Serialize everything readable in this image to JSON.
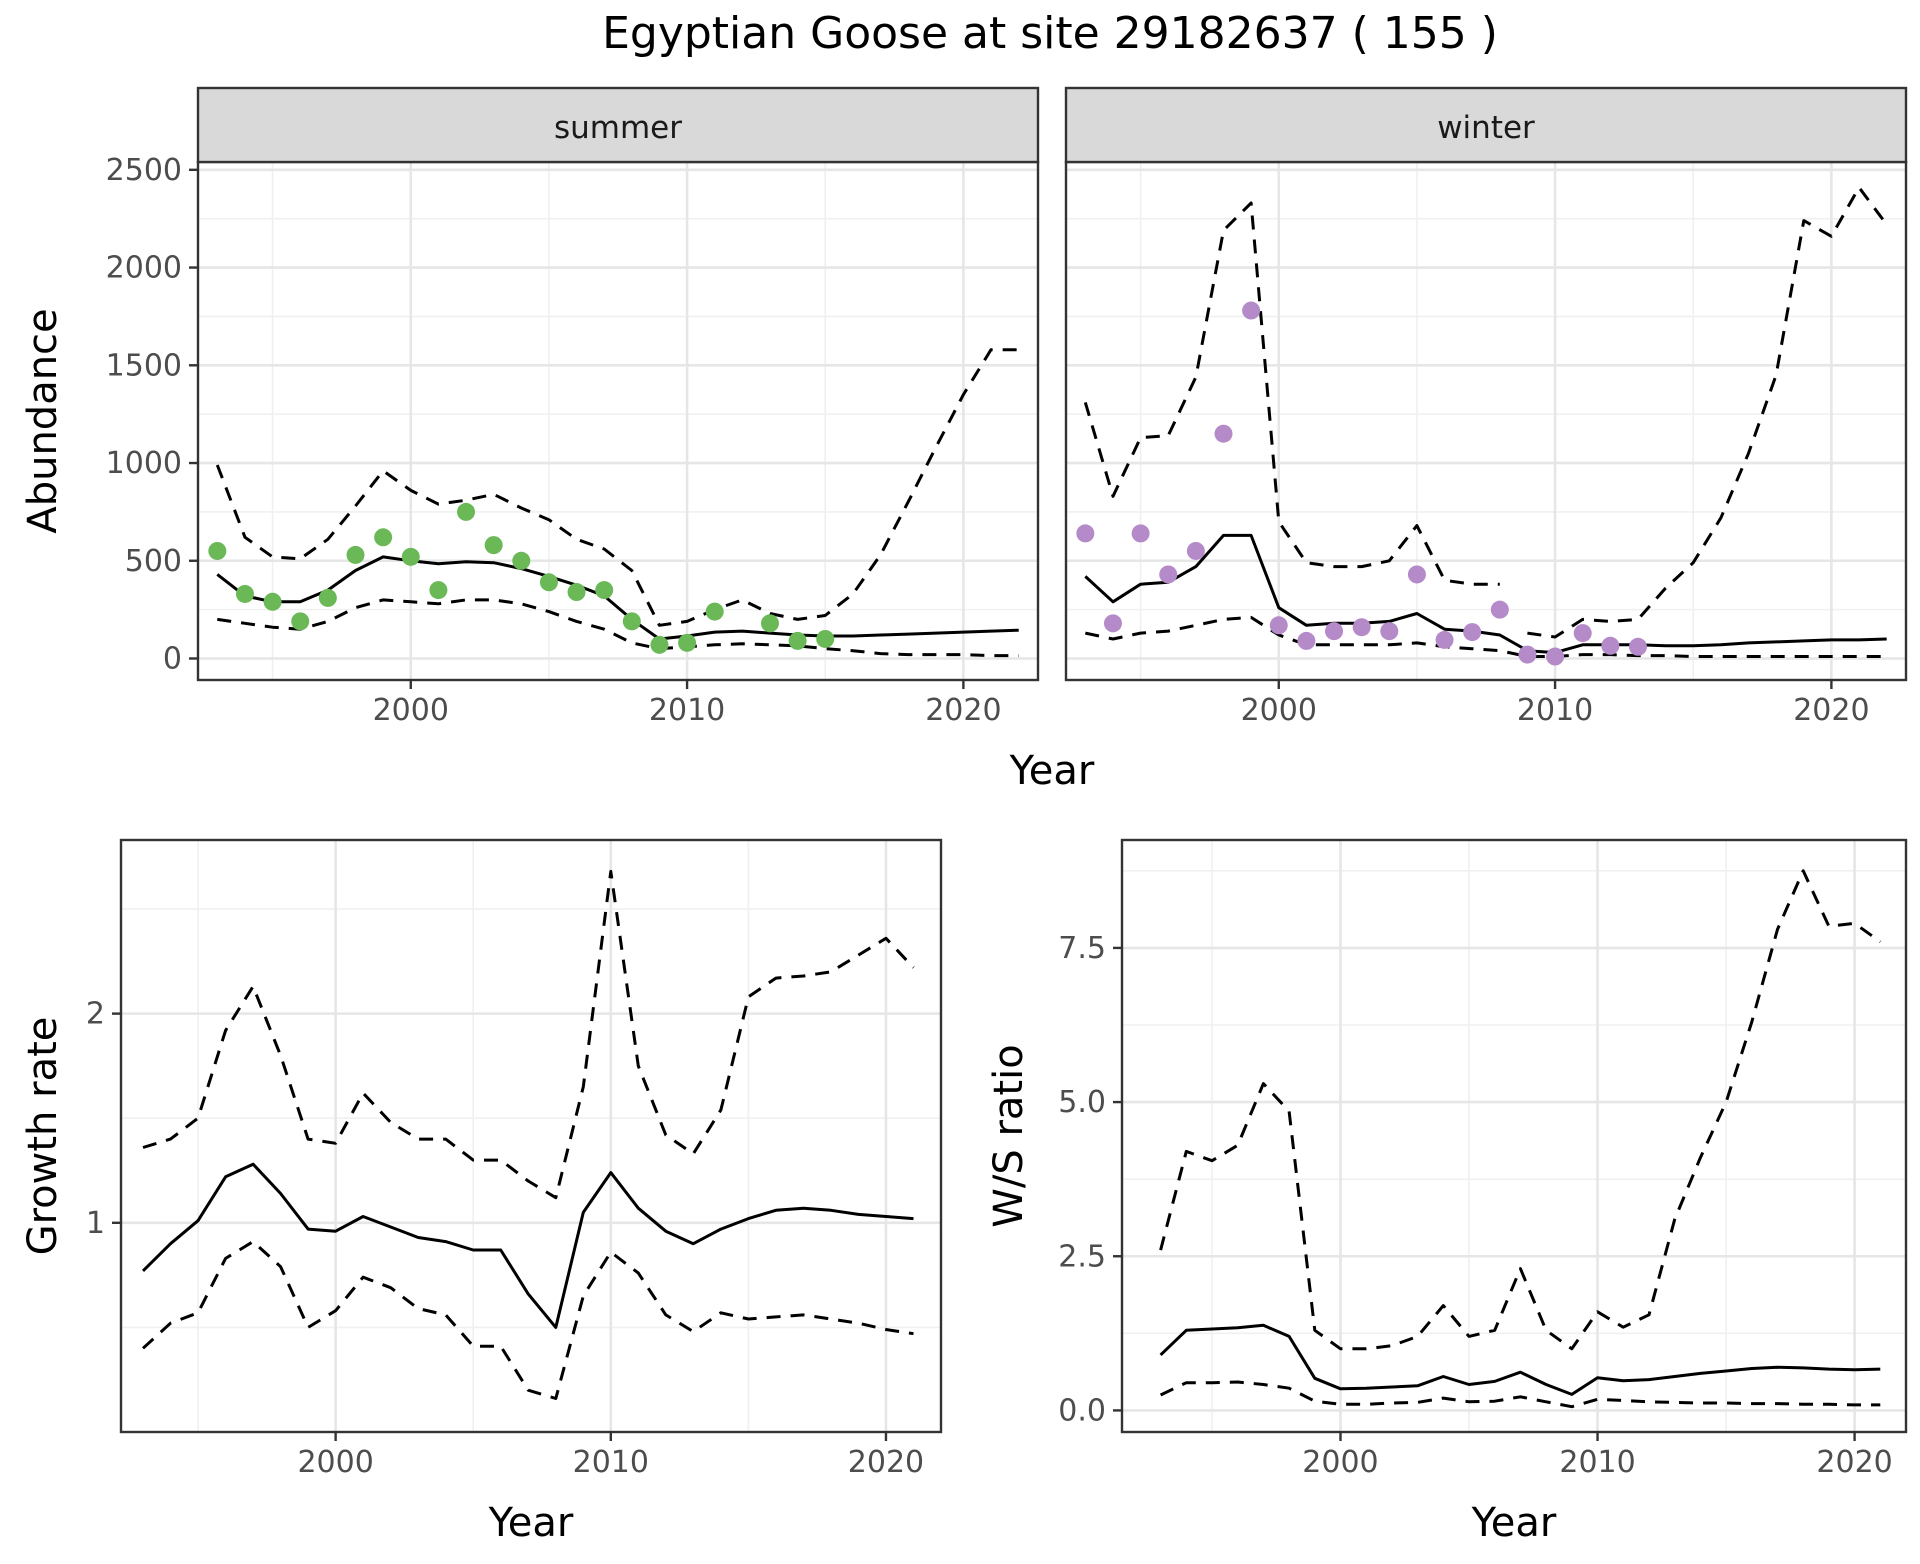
{
  "title": "Egyptian Goose at site 29182637 ( 155 )",
  "chart_data": [
    {
      "type": "line",
      "panel": "summer",
      "strip_label": "summer",
      "xlabel": "Year",
      "ylabel": "Abundance",
      "xlim": [
        1992.3,
        2022.7
      ],
      "ylim": [
        -110,
        2540
      ],
      "x_ticks": [
        2000,
        2010,
        2020
      ],
      "y_ticks": [
        0,
        500,
        1000,
        1500,
        2000,
        2500
      ],
      "grid": true,
      "point_color": "#6ab856",
      "series": [
        {
          "role": "estimate",
          "style": "solid",
          "x": [
            1993,
            1994,
            1995,
            1996,
            1997,
            1998,
            1999,
            2000,
            2001,
            2002,
            2003,
            2004,
            2005,
            2006,
            2007,
            2008,
            2009,
            2010,
            2011,
            2012,
            2013,
            2014,
            2015,
            2016,
            2017,
            2018,
            2019,
            2020,
            2021,
            2022
          ],
          "y": [
            430,
            320,
            290,
            290,
            350,
            450,
            520,
            500,
            485,
            495,
            490,
            460,
            420,
            375,
            320,
            200,
            100,
            115,
            135,
            140,
            130,
            120,
            115,
            115,
            120,
            125,
            130,
            135,
            140,
            145
          ]
        },
        {
          "role": "upper",
          "style": "dashed",
          "x": [
            1993,
            1994,
            1995,
            1996,
            1997,
            1998,
            1999,
            2000,
            2001,
            2002,
            2003,
            2004,
            2005,
            2006,
            2007,
            2008,
            2009,
            2010,
            2011,
            2012,
            2013,
            2014,
            2015,
            2016,
            2017,
            2018,
            2019,
            2020,
            2021,
            2022
          ],
          "y": [
            990,
            620,
            520,
            510,
            610,
            780,
            960,
            860,
            790,
            810,
            840,
            770,
            710,
            610,
            560,
            450,
            170,
            190,
            250,
            300,
            230,
            200,
            220,
            330,
            530,
            800,
            1080,
            1350,
            1580,
            1580
          ]
        },
        {
          "role": "lower",
          "style": "dashed",
          "x": [
            1993,
            1994,
            1995,
            1996,
            1997,
            1998,
            1999,
            2000,
            2001,
            2002,
            2003,
            2004,
            2005,
            2006,
            2007,
            2008,
            2009,
            2010,
            2011,
            2012,
            2013,
            2014,
            2015,
            2016,
            2017,
            2018,
            2019,
            2020,
            2021,
            2022
          ],
          "y": [
            200,
            180,
            160,
            150,
            190,
            260,
            300,
            290,
            280,
            300,
            300,
            280,
            240,
            190,
            150,
            80,
            50,
            60,
            70,
            75,
            70,
            65,
            50,
            40,
            25,
            20,
            20,
            20,
            15,
            15
          ]
        },
        {
          "role": "observed",
          "style": "points",
          "x": [
            1993,
            1994,
            1995,
            1996,
            1997,
            1998,
            1999,
            2000,
            2001,
            2002,
            2003,
            2004,
            2005,
            2006,
            2007,
            2008,
            2009,
            2010,
            2011,
            2013,
            2014,
            2015
          ],
          "y": [
            550,
            330,
            290,
            190,
            310,
            530,
            620,
            520,
            350,
            750,
            580,
            500,
            390,
            340,
            350,
            190,
            70,
            80,
            240,
            180,
            90,
            100
          ]
        }
      ]
    },
    {
      "type": "line",
      "panel": "winter",
      "strip_label": "winter",
      "xlabel": "Year",
      "ylabel": "Abundance",
      "xlim": [
        1992.3,
        2022.7
      ],
      "ylim": [
        -110,
        2540
      ],
      "x_ticks": [
        2000,
        2010,
        2020
      ],
      "y_ticks": [
        0,
        500,
        1000,
        1500,
        2000,
        2500
      ],
      "grid": true,
      "point_color": "#b48ac8",
      "series": [
        {
          "role": "estimate",
          "style": "solid",
          "x": [
            1993,
            1994,
            1995,
            1996,
            1997,
            1998,
            1999,
            2000,
            2001,
            2002,
            2003,
            2004,
            2005,
            2006,
            2007,
            2008,
            2009,
            2010,
            2011,
            2012,
            2013,
            2014,
            2015,
            2016,
            2017,
            2018,
            2019,
            2020,
            2021,
            2022
          ],
          "y": [
            420,
            290,
            380,
            390,
            470,
            630,
            630,
            260,
            170,
            180,
            180,
            190,
            230,
            150,
            140,
            120,
            40,
            30,
            70,
            70,
            70,
            65,
            65,
            70,
            80,
            85,
            90,
            95,
            95,
            100
          ]
        },
        {
          "role": "upper",
          "style": "dashed",
          "x": [
            1993,
            1994,
            1995,
            1996,
            1997,
            1998,
            1999,
            2000,
            2001,
            2002,
            2003,
            2004,
            2005,
            2006,
            2007,
            2008
          ],
          "y": [
            1310,
            830,
            1130,
            1140,
            1440,
            2190,
            2330,
            700,
            490,
            470,
            470,
            500,
            680,
            400,
            380,
            380
          ]
        },
        {
          "role": "upper",
          "style": "dashed",
          "x": [
            2009,
            2010,
            2011,
            2012,
            2013,
            2014,
            2015,
            2016,
            2017,
            2018,
            2019,
            2020,
            2021,
            2022
          ],
          "y": [
            130,
            110,
            200,
            190,
            200,
            360,
            490,
            720,
            1050,
            1450,
            2240,
            2160,
            2410,
            2220
          ]
        },
        {
          "role": "lower",
          "style": "dashed",
          "x": [
            1993,
            1994,
            1995,
            1996,
            1997,
            1998,
            1999,
            2000,
            2001,
            2002,
            2003,
            2004,
            2005,
            2006,
            2007,
            2008,
            2009,
            2010,
            2011,
            2012,
            2013,
            2014,
            2015,
            2016,
            2017,
            2018,
            2019,
            2020,
            2021,
            2022
          ],
          "y": [
            130,
            100,
            130,
            140,
            170,
            200,
            210,
            120,
            70,
            70,
            70,
            70,
            80,
            60,
            50,
            40,
            10,
            10,
            20,
            20,
            15,
            15,
            10,
            10,
            10,
            10,
            10,
            10,
            10,
            10
          ]
        },
        {
          "role": "observed",
          "style": "points",
          "x": [
            1993,
            1994,
            1995,
            1996,
            1997,
            1998,
            1999,
            2000,
            2001,
            2002,
            2003,
            2004,
            2005,
            2006,
            2007,
            2008,
            2009,
            2010,
            2011,
            2012,
            2013
          ],
          "y": [
            640,
            180,
            640,
            430,
            550,
            1150,
            1780,
            170,
            90,
            140,
            160,
            140,
            430,
            95,
            135,
            250,
            20,
            10,
            130,
            65,
            60
          ]
        }
      ]
    },
    {
      "type": "line",
      "panel": "growth",
      "xlabel": "Year",
      "ylabel": "Growth rate",
      "xlim": [
        1992.2,
        2022.0
      ],
      "ylim": [
        0.0,
        2.83
      ],
      "x_ticks": [
        2000,
        2010,
        2020
      ],
      "y_ticks": [
        1,
        2
      ],
      "grid": true,
      "series": [
        {
          "role": "estimate",
          "style": "solid",
          "x": [
            1993,
            1994,
            1995,
            1996,
            1997,
            1998,
            1999,
            2000,
            2001,
            2002,
            2003,
            2004,
            2005,
            2006,
            2007,
            2008,
            2009,
            2010,
            2011,
            2012,
            2013,
            2014,
            2015,
            2016,
            2017,
            2018,
            2019,
            2020,
            2021
          ],
          "y": [
            0.77,
            0.9,
            1.01,
            1.22,
            1.28,
            1.14,
            0.97,
            0.96,
            1.03,
            0.98,
            0.93,
            0.91,
            0.87,
            0.87,
            0.66,
            0.5,
            1.05,
            1.24,
            1.07,
            0.96,
            0.9,
            0.97,
            1.02,
            1.06,
            1.07,
            1.06,
            1.04,
            1.03,
            1.02
          ]
        },
        {
          "role": "upper",
          "style": "dashed",
          "x": [
            1993,
            1994,
            1995,
            1996,
            1997,
            1998,
            1999,
            2000,
            2001,
            2002,
            2003,
            2004,
            2005,
            2006,
            2007,
            2008,
            2009,
            2010,
            2011,
            2012,
            2013,
            2014,
            2015,
            2016,
            2017,
            2018,
            2019,
            2020,
            2021
          ],
          "y": [
            1.36,
            1.4,
            1.5,
            1.92,
            2.13,
            1.8,
            1.4,
            1.38,
            1.62,
            1.48,
            1.4,
            1.4,
            1.3,
            1.3,
            1.2,
            1.12,
            1.65,
            2.68,
            1.75,
            1.42,
            1.33,
            1.54,
            2.08,
            2.17,
            2.18,
            2.2,
            2.28,
            2.36,
            2.22
          ]
        },
        {
          "role": "lower",
          "style": "dashed",
          "x": [
            1993,
            1994,
            1995,
            1996,
            1997,
            1998,
            1999,
            2000,
            2001,
            2002,
            2003,
            2004,
            2005,
            2006,
            2007,
            2008,
            2009,
            2010,
            2011,
            2012,
            2013,
            2014,
            2015,
            2016,
            2017,
            2018,
            2019,
            2020,
            2021
          ],
          "y": [
            0.4,
            0.52,
            0.57,
            0.83,
            0.91,
            0.79,
            0.5,
            0.58,
            0.74,
            0.69,
            0.59,
            0.56,
            0.41,
            0.41,
            0.2,
            0.16,
            0.65,
            0.86,
            0.76,
            0.56,
            0.48,
            0.57,
            0.54,
            0.55,
            0.56,
            0.54,
            0.52,
            0.49,
            0.47
          ]
        }
      ]
    },
    {
      "type": "line",
      "panel": "ratio",
      "xlabel": "Year",
      "ylabel": "W/S ratio",
      "xlim": [
        1991.5,
        2022.0
      ],
      "ylim": [
        -0.35,
        9.25
      ],
      "x_ticks": [
        2000,
        2010,
        2020
      ],
      "y_ticks": [
        0.0,
        2.5,
        5.0,
        7.5
      ],
      "y_tick_labels": [
        "0.0",
        "2.5",
        "5.0",
        "7.5"
      ],
      "grid": true,
      "series": [
        {
          "role": "estimate",
          "style": "solid",
          "x": [
            1993,
            1994,
            1995,
            1996,
            1997,
            1998,
            1999,
            2000,
            2001,
            2002,
            2003,
            2004,
            2005,
            2006,
            2007,
            2008,
            2009,
            2010,
            2011,
            2012,
            2013,
            2014,
            2015,
            2016,
            2017,
            2018,
            2019,
            2020,
            2021
          ],
          "y": [
            0.9,
            1.3,
            1.32,
            1.34,
            1.38,
            1.2,
            0.52,
            0.35,
            0.36,
            0.38,
            0.4,
            0.55,
            0.42,
            0.47,
            0.62,
            0.42,
            0.26,
            0.53,
            0.48,
            0.5,
            0.55,
            0.6,
            0.64,
            0.68,
            0.7,
            0.69,
            0.67,
            0.66,
            0.67
          ]
        },
        {
          "role": "upper",
          "style": "dashed",
          "x": [
            1993,
            1994,
            1995,
            1996,
            1997,
            1998,
            1999,
            2000,
            2001,
            2002,
            2003,
            2004,
            2005,
            2006,
            2007,
            2008,
            2009,
            2010,
            2011,
            2012,
            2013,
            2014,
            2015,
            2016,
            2017,
            2018,
            2019,
            2020,
            2021
          ],
          "y": [
            2.6,
            4.2,
            4.05,
            4.3,
            5.3,
            4.85,
            1.3,
            1.0,
            1.0,
            1.05,
            1.2,
            1.7,
            1.2,
            1.3,
            2.3,
            1.3,
            1.0,
            1.6,
            1.35,
            1.55,
            3.1,
            4.1,
            5.0,
            6.3,
            7.8,
            8.75,
            7.85,
            7.9,
            7.6
          ]
        },
        {
          "role": "lower",
          "style": "dashed",
          "x": [
            1993,
            1994,
            1995,
            1996,
            1997,
            1998,
            1999,
            2000,
            2001,
            2002,
            2003,
            2004,
            2005,
            2006,
            2007,
            2008,
            2009,
            2010,
            2011,
            2012,
            2013,
            2014,
            2015,
            2016,
            2017,
            2018,
            2019,
            2020,
            2021
          ],
          "y": [
            0.25,
            0.45,
            0.45,
            0.46,
            0.42,
            0.36,
            0.15,
            0.1,
            0.1,
            0.12,
            0.13,
            0.2,
            0.14,
            0.15,
            0.22,
            0.14,
            0.06,
            0.18,
            0.16,
            0.14,
            0.13,
            0.12,
            0.12,
            0.11,
            0.11,
            0.1,
            0.1,
            0.09,
            0.09
          ]
        }
      ]
    }
  ]
}
